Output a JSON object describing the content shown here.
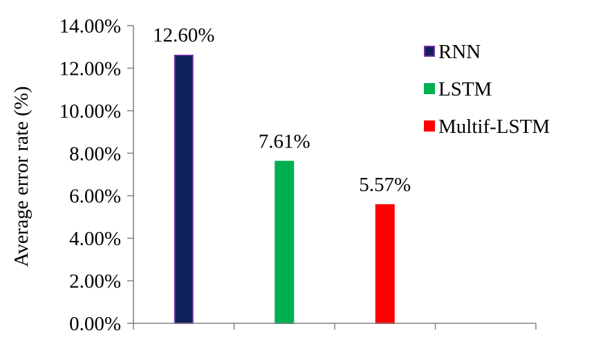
{
  "chart_data": {
    "type": "bar",
    "title": "",
    "xlabel": "",
    "ylabel": "Average error rate (%)",
    "ylim": [
      0,
      14
    ],
    "yticks": [
      "0.00%",
      "2.00%",
      "4.00%",
      "6.00%",
      "8.00%",
      "10.00%",
      "12.00%",
      "14.00%"
    ],
    "grid": false,
    "legend_position": "top-right",
    "series": [
      {
        "name": "RNN",
        "value": 12.6,
        "label": "12.60%",
        "color": "#0e1f5b",
        "stroke": "#7030a0"
      },
      {
        "name": "LSTM",
        "value": 7.61,
        "label": "7.61%",
        "color": "#00b050",
        "stroke": "#00b050"
      },
      {
        "name": "Multif-LSTM",
        "value": 5.57,
        "label": "5.57%",
        "color": "#ff0000",
        "stroke": "#ff0000"
      }
    ]
  }
}
